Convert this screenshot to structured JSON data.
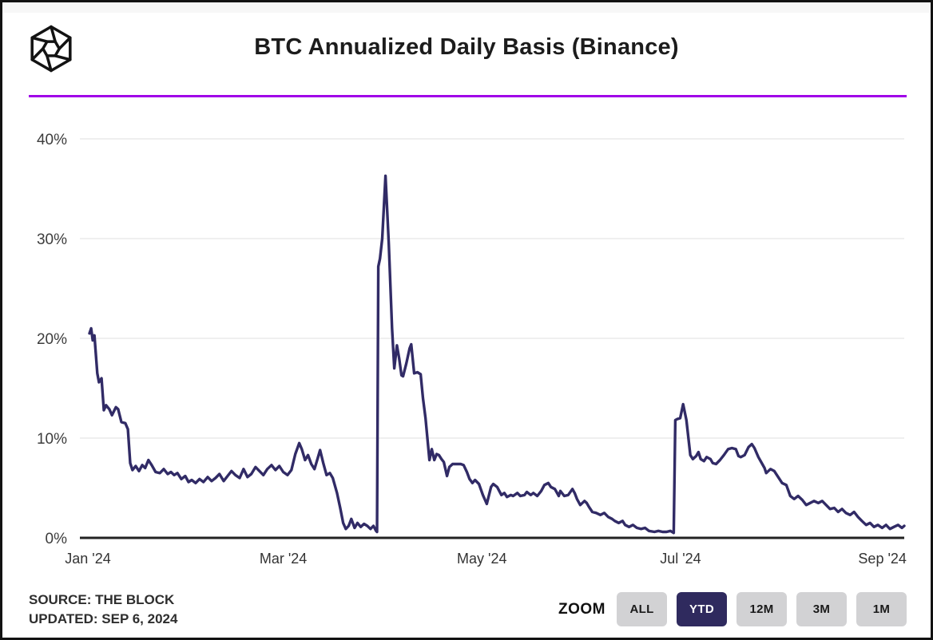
{
  "header": {
    "title": "BTC Annualized Daily Basis (Binance)",
    "logo_name": "the-block-logo"
  },
  "colors": {
    "accent_divider": "#A000E8",
    "line": "#312B66",
    "active_button_bg": "#2F2A5E",
    "inactive_button_bg": "#D2D2D4",
    "gridline": "#EAEAEA",
    "axis": "#222222"
  },
  "chart_data": {
    "type": "line",
    "title": "BTC Annualized Daily Basis (Binance)",
    "series_name": "BTC annualized daily basis",
    "x_unit": "days since Jan 1, 2024",
    "xlim": [
      0,
      250.7
    ],
    "ylim": [
      0,
      43
    ],
    "grid": true,
    "legend": "none",
    "y_ticks": [
      0,
      10,
      20,
      30,
      40
    ],
    "y_tick_labels": [
      "0%",
      "10%",
      "20%",
      "30%",
      "40%"
    ],
    "x_tick_days": [
      0,
      60,
      121,
      182,
      244
    ],
    "x_tick_labels": [
      "Jan '24",
      "Mar '24",
      "May '24",
      "Jul '24",
      "Sep '24"
    ],
    "points": [
      [
        0.5,
        20.5
      ],
      [
        1,
        21
      ],
      [
        1.5,
        19.8
      ],
      [
        2,
        20.3
      ],
      [
        2.9,
        16.5
      ],
      [
        3.4,
        15.6
      ],
      [
        4.2,
        16
      ],
      [
        4.9,
        12.8
      ],
      [
        5.6,
        13.3
      ],
      [
        6.6,
        12.9
      ],
      [
        7.4,
        12.3
      ],
      [
        8.6,
        13.1
      ],
      [
        9.3,
        12.9
      ],
      [
        10.3,
        11.6
      ],
      [
        11.5,
        11.5
      ],
      [
        12.3,
        10.9
      ],
      [
        13,
        7.5
      ],
      [
        13.7,
        6.8
      ],
      [
        14.7,
        7.2
      ],
      [
        15.7,
        6.7
      ],
      [
        16.7,
        7.3
      ],
      [
        17.6,
        7
      ],
      [
        18.6,
        7.8
      ],
      [
        19.6,
        7.3
      ],
      [
        20.8,
        6.6
      ],
      [
        22.1,
        6.5
      ],
      [
        23.3,
        6.9
      ],
      [
        24.5,
        6.4
      ],
      [
        25.5,
        6.6
      ],
      [
        26.5,
        6.3
      ],
      [
        27.5,
        6.5
      ],
      [
        28.7,
        5.9
      ],
      [
        29.9,
        6.2
      ],
      [
        30.9,
        5.6
      ],
      [
        31.9,
        5.8
      ],
      [
        33.1,
        5.5
      ],
      [
        34.3,
        5.9
      ],
      [
        35.5,
        5.6
      ],
      [
        36.8,
        6.1
      ],
      [
        38,
        5.7
      ],
      [
        39.2,
        6
      ],
      [
        40.4,
        6.4
      ],
      [
        41.7,
        5.7
      ],
      [
        42.9,
        6.2
      ],
      [
        44.1,
        6.7
      ],
      [
        45.3,
        6.3
      ],
      [
        46.6,
        6
      ],
      [
        47.8,
        6.9
      ],
      [
        49,
        6.1
      ],
      [
        50.2,
        6.4
      ],
      [
        51.5,
        7.1
      ],
      [
        52.7,
        6.7
      ],
      [
        53.9,
        6.3
      ],
      [
        55.1,
        6.9
      ],
      [
        56.4,
        7.3
      ],
      [
        57.6,
        6.8
      ],
      [
        58.8,
        7.2
      ],
      [
        60,
        6.6
      ],
      [
        61.3,
        6.3
      ],
      [
        62.5,
        6.8
      ],
      [
        63.7,
        8.4
      ],
      [
        64.9,
        9.5
      ],
      [
        65.7,
        8.9
      ],
      [
        66.7,
        7.8
      ],
      [
        67.6,
        8.3
      ],
      [
        68.6,
        7.4
      ],
      [
        69.6,
        6.9
      ],
      [
        70.6,
        8
      ],
      [
        71.3,
        8.8
      ],
      [
        72.3,
        7.5
      ],
      [
        73.3,
        6.3
      ],
      [
        74.3,
        6.5
      ],
      [
        75.2,
        6
      ],
      [
        76.5,
        4.5
      ],
      [
        77.5,
        3
      ],
      [
        78.4,
        1.5
      ],
      [
        79.2,
        0.9
      ],
      [
        80.1,
        1.2
      ],
      [
        80.9,
        1.9
      ],
      [
        81.9,
        1
      ],
      [
        82.8,
        1.5
      ],
      [
        83.8,
        1.1
      ],
      [
        84.8,
        1.4
      ],
      [
        85.8,
        1.2
      ],
      [
        86.8,
        0.9
      ],
      [
        87.7,
        1.2
      ],
      [
        88.5,
        0.7
      ],
      [
        88.8,
        0.6
      ],
      [
        89.2,
        27.2
      ],
      [
        89.7,
        28
      ],
      [
        90.4,
        30
      ],
      [
        91.4,
        36.3
      ],
      [
        92.4,
        29.5
      ],
      [
        93.4,
        21
      ],
      [
        94.1,
        17
      ],
      [
        94.9,
        19.3
      ],
      [
        95.6,
        18
      ],
      [
        96.3,
        16.3
      ],
      [
        96.8,
        16.2
      ],
      [
        97.8,
        17.5
      ],
      [
        98.8,
        19
      ],
      [
        99.3,
        19.4
      ],
      [
        100.2,
        16.5
      ],
      [
        101.2,
        16.6
      ],
      [
        102.2,
        16.4
      ],
      [
        102.9,
        14
      ],
      [
        103.7,
        12
      ],
      [
        104.2,
        10.2
      ],
      [
        104.9,
        7.8
      ],
      [
        105.6,
        8.9
      ],
      [
        106.4,
        7.8
      ],
      [
        107.1,
        8.4
      ],
      [
        107.8,
        8.3
      ],
      [
        108.6,
        7.9
      ],
      [
        109.3,
        7.6
      ],
      [
        110.3,
        6.2
      ],
      [
        111,
        7.1
      ],
      [
        112,
        7.4
      ],
      [
        113.2,
        7.4
      ],
      [
        114.5,
        7.4
      ],
      [
        115.4,
        7.3
      ],
      [
        116.4,
        6.6
      ],
      [
        117.2,
        5.9
      ],
      [
        118.1,
        5.5
      ],
      [
        118.9,
        5.8
      ],
      [
        120.1,
        5.4
      ],
      [
        121.3,
        4.3
      ],
      [
        122.5,
        3.4
      ],
      [
        123.8,
        5.1
      ],
      [
        124.5,
        5.4
      ],
      [
        125.7,
        5.1
      ],
      [
        127,
        4.3
      ],
      [
        127.9,
        4.5
      ],
      [
        128.7,
        4.1
      ],
      [
        129.9,
        4.3
      ],
      [
        130.6,
        4.2
      ],
      [
        131.9,
        4.5
      ],
      [
        132.8,
        4.2
      ],
      [
        134.1,
        4.3
      ],
      [
        134.8,
        4.6
      ],
      [
        136,
        4.3
      ],
      [
        136.8,
        4.5
      ],
      [
        138,
        4.2
      ],
      [
        139.2,
        4.7
      ],
      [
        140.2,
        5.3
      ],
      [
        141.4,
        5.5
      ],
      [
        142.2,
        5.1
      ],
      [
        143.4,
        4.9
      ],
      [
        144.6,
        4.2
      ],
      [
        145.1,
        4.7
      ],
      [
        146.3,
        4.2
      ],
      [
        147.5,
        4.3
      ],
      [
        148.8,
        4.9
      ],
      [
        149.5,
        4.5
      ],
      [
        150.2,
        3.9
      ],
      [
        151.2,
        3.3
      ],
      [
        152.5,
        3.7
      ],
      [
        153.2,
        3.5
      ],
      [
        153.9,
        3.1
      ],
      [
        154.9,
        2.6
      ],
      [
        156.1,
        2.5
      ],
      [
        157.4,
        2.3
      ],
      [
        158.6,
        2.5
      ],
      [
        159.8,
        2.1
      ],
      [
        161,
        1.9
      ],
      [
        161.8,
        1.7
      ],
      [
        163,
        1.5
      ],
      [
        164.2,
        1.7
      ],
      [
        165,
        1.3
      ],
      [
        166.2,
        1.1
      ],
      [
        167.4,
        1.3
      ],
      [
        168.6,
        1
      ],
      [
        169.9,
        0.9
      ],
      [
        171.1,
        1
      ],
      [
        172.3,
        0.7
      ],
      [
        174,
        0.6
      ],
      [
        175.2,
        0.7
      ],
      [
        176.5,
        0.6
      ],
      [
        177.7,
        0.6
      ],
      [
        178.9,
        0.7
      ],
      [
        179.9,
        0.5
      ],
      [
        180.4,
        11.8
      ],
      [
        180.9,
        11.9
      ],
      [
        181.9,
        12
      ],
      [
        182.8,
        13.4
      ],
      [
        183.8,
        11.8
      ],
      [
        185,
        8.3
      ],
      [
        185.8,
        7.9
      ],
      [
        186.8,
        8.2
      ],
      [
        187.5,
        8.6
      ],
      [
        188.2,
        7.9
      ],
      [
        189.2,
        7.7
      ],
      [
        190,
        8.1
      ],
      [
        191.2,
        7.9
      ],
      [
        191.9,
        7.5
      ],
      [
        192.9,
        7.4
      ],
      [
        194.1,
        7.8
      ],
      [
        195.3,
        8.3
      ],
      [
        196.6,
        8.9
      ],
      [
        197.8,
        9
      ],
      [
        199,
        8.9
      ],
      [
        199.8,
        8.2
      ],
      [
        200.5,
        8.1
      ],
      [
        201.7,
        8.3
      ],
      [
        202.9,
        9.1
      ],
      [
        203.9,
        9.4
      ],
      [
        204.7,
        9
      ],
      [
        205.9,
        8.1
      ],
      [
        207.1,
        7.4
      ],
      [
        207.8,
        7
      ],
      [
        208.3,
        6.5
      ],
      [
        209.6,
        6.9
      ],
      [
        210.8,
        6.7
      ],
      [
        212,
        6.1
      ],
      [
        213.2,
        5.5
      ],
      [
        214.5,
        5.3
      ],
      [
        215.7,
        4.2
      ],
      [
        216.9,
        3.9
      ],
      [
        218.1,
        4.2
      ],
      [
        219.4,
        3.8
      ],
      [
        220.6,
        3.3
      ],
      [
        221.8,
        3.5
      ],
      [
        223,
        3.7
      ],
      [
        224.3,
        3.5
      ],
      [
        225.5,
        3.7
      ],
      [
        226.7,
        3.3
      ],
      [
        227.9,
        2.9
      ],
      [
        229.2,
        3
      ],
      [
        230.4,
        2.6
      ],
      [
        231.6,
        2.9
      ],
      [
        232.8,
        2.5
      ],
      [
        234.1,
        2.3
      ],
      [
        235.3,
        2.6
      ],
      [
        236.5,
        2.1
      ],
      [
        237.7,
        1.7
      ],
      [
        239,
        1.3
      ],
      [
        240.2,
        1.5
      ],
      [
        241.4,
        1.1
      ],
      [
        242.6,
        1.3
      ],
      [
        243.9,
        1
      ],
      [
        245.1,
        1.3
      ],
      [
        246.3,
        0.9
      ],
      [
        247.5,
        1.1
      ],
      [
        248.8,
        1.3
      ],
      [
        250,
        1
      ],
      [
        250.7,
        1.2
      ]
    ]
  },
  "footer": {
    "source_line1": "SOURCE: THE BLOCK",
    "source_line2": "UPDATED: SEP 6, 2024",
    "zoom_label": "ZOOM",
    "zoom_buttons": [
      {
        "label": "ALL",
        "active": false
      },
      {
        "label": "YTD",
        "active": true
      },
      {
        "label": "12M",
        "active": false
      },
      {
        "label": "3M",
        "active": false
      },
      {
        "label": "1M",
        "active": false
      }
    ]
  }
}
